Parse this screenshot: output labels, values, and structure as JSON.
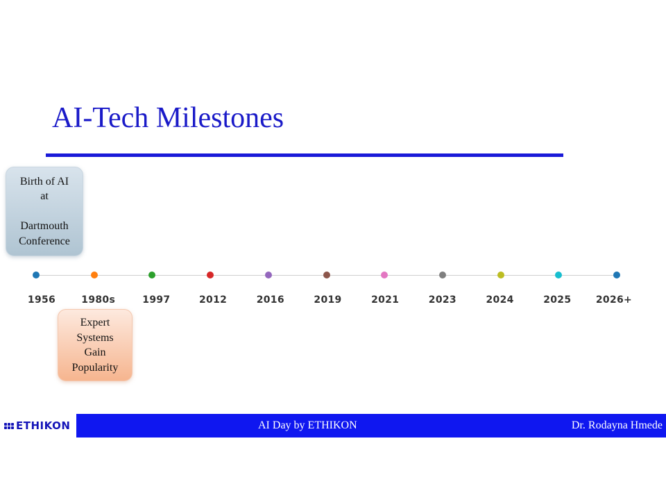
{
  "slide": {
    "title": "AI-Tech Milestones",
    "colors": {
      "title": "#1a1ac8",
      "footer_bar": "#0f17f0"
    }
  },
  "timeline": {
    "years": [
      {
        "label": "1956",
        "color": "#1f77b4"
      },
      {
        "label": "1980s",
        "color": "#ff7f0e"
      },
      {
        "label": "1997",
        "color": "#2ca02c"
      },
      {
        "label": "2012",
        "color": "#d62728"
      },
      {
        "label": "2016",
        "color": "#9467bd"
      },
      {
        "label": "2019",
        "color": "#8c564b"
      },
      {
        "label": "2021",
        "color": "#e377c2"
      },
      {
        "label": "2023",
        "color": "#7f7f7f"
      },
      {
        "label": "2024",
        "color": "#bcbd22"
      },
      {
        "label": "2025",
        "color": "#17becf"
      },
      {
        "label": "2026+",
        "color": "#1f77b4"
      }
    ],
    "events": {
      "e1956": "Birth of AI\nat\n\nDartmouth\nConference",
      "e1980s": "Expert\nSystems\nGain\nPopularity"
    }
  },
  "footer": {
    "logo_text": "ETHIKON",
    "center_text": "AI Day by ETHIKON",
    "right_text": "Dr. Rodayna Hmede"
  }
}
